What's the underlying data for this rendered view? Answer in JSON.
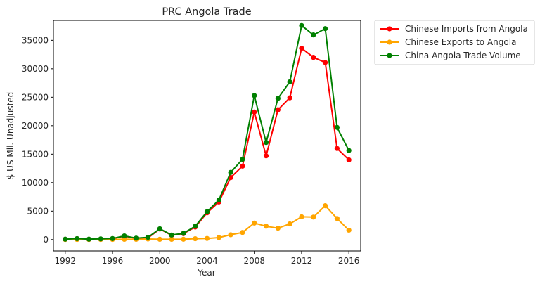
{
  "chart_data": {
    "type": "line",
    "title": "PRC Angola Trade",
    "xlabel": "Year",
    "ylabel": "$ US Mil. Unadjusted",
    "xlim": [
      1991.0,
      2017.0
    ],
    "ylim": [
      -2000,
      38500
    ],
    "xticks": [
      1992,
      1996,
      2000,
      2004,
      2008,
      2012,
      2016
    ],
    "yticks": [
      0,
      5000,
      10000,
      15000,
      20000,
      25000,
      30000,
      35000
    ],
    "grid": false,
    "legend_position": "outside-top-right",
    "x": [
      1992,
      1993,
      1994,
      1995,
      1996,
      1997,
      1998,
      1999,
      2000,
      2001,
      2002,
      2003,
      2004,
      2005,
      2006,
      2007,
      2008,
      2009,
      2010,
      2011,
      2012,
      2013,
      2014,
      2015,
      2016
    ],
    "series": [
      {
        "name": "Chinese Imports from Angola",
        "color": "#ff0000",
        "values": [
          50,
          150,
          50,
          100,
          150,
          600,
          200,
          300,
          1850,
          750,
          1050,
          2200,
          4700,
          6600,
          10900,
          12900,
          22400,
          14700,
          22800,
          24900,
          33600,
          32000,
          31100,
          16000,
          14000
        ]
      },
      {
        "name": "Chinese Exports to Angola",
        "color": "#ffa500",
        "values": [
          20,
          20,
          20,
          20,
          30,
          50,
          50,
          100,
          50,
          50,
          60,
          150,
          200,
          350,
          850,
          1250,
          2900,
          2350,
          2000,
          2750,
          4000,
          3950,
          5950,
          3700,
          1650
        ]
      },
      {
        "name": "China Angola Trade Volume",
        "color": "#008000",
        "values": [
          70,
          170,
          70,
          120,
          180,
          650,
          250,
          400,
          1900,
          800,
          1100,
          2350,
          4900,
          6950,
          11800,
          14100,
          25300,
          17050,
          24800,
          27700,
          37600,
          35950,
          37050,
          19700,
          15650
        ]
      }
    ]
  }
}
